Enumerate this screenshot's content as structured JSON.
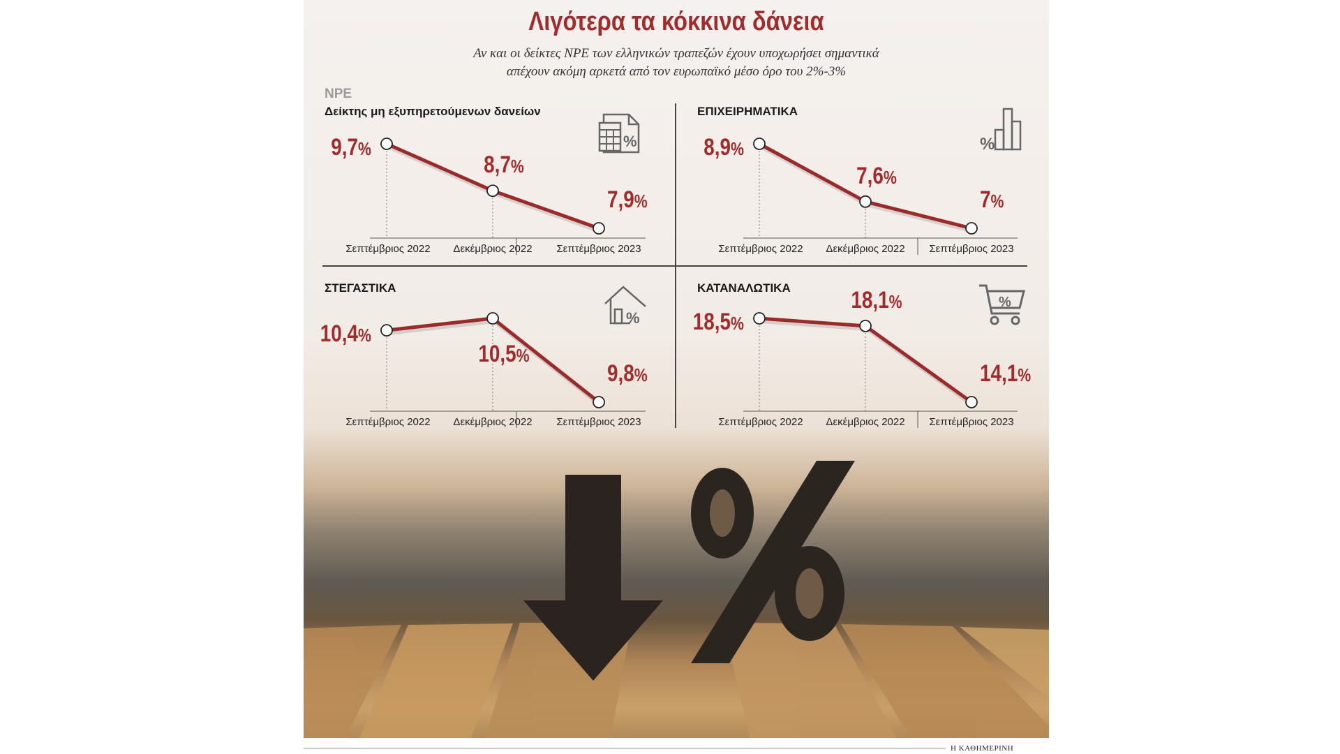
{
  "title": "Λιγότερα τα κόκκινα δάνεια",
  "subtitle": {
    "line1": "Αν και οι δείκτες NPE των ελληνικών τραπεζών έχουν υποχωρήσει σημαντικά",
    "line2": "απέχουν ακόμη αρκετά από τον ευρωπαϊκό μέσο όρο του 2%-3%"
  },
  "npe_label": "NPE",
  "footer": "Η ΚΑΘΗΜΕΡΙΝΗ",
  "colors": {
    "accent": "#a02c2c",
    "line": "#9b2a2a"
  },
  "chart_data": [
    {
      "type": "line",
      "title": "Δείκτης μη εξυπηρετούμενων δανείων",
      "icon": "calculator-percent-icon",
      "categories": [
        "Σεπτέμβριος 2022",
        "Δεκέμβριος 2022",
        "Σεπτέμβριος 2023"
      ],
      "values": [
        9.7,
        8.7,
        7.9
      ],
      "labels": [
        "9,7",
        "8,7",
        "7,9"
      ],
      "unit": "%"
    },
    {
      "type": "line",
      "title": "ΕΠΙΧΕΙΡΗΜΑΤΙΚΑ",
      "icon": "bar-chart-percent-icon",
      "categories": [
        "Σεπτέμβριος 2022",
        "Δεκέμβριος 2022",
        "Σεπτέμβριος 2023"
      ],
      "values": [
        8.9,
        7.6,
        7.0
      ],
      "labels": [
        "8,9",
        "7,6",
        "7"
      ],
      "unit": "%"
    },
    {
      "type": "line",
      "title": "ΣΤΕΓΑΣΤΙΚΑ",
      "icon": "house-percent-icon",
      "categories": [
        "Σεπτέμβριος 2022",
        "Δεκέμβριος 2022",
        "Σεπτέμβριος 2023"
      ],
      "values": [
        10.4,
        10.5,
        9.8
      ],
      "labels": [
        "10,4",
        "10,5",
        "9,8"
      ],
      "unit": "%"
    },
    {
      "type": "line",
      "title": "ΚΑΤΑΝΑΛΩΤΙΚΑ",
      "icon": "shopping-cart-percent-icon",
      "categories": [
        "Σεπτέμβριος 2022",
        "Δεκέμβριος 2022",
        "Σεπτέμβριος 2023"
      ],
      "values": [
        18.5,
        18.1,
        14.1
      ],
      "labels": [
        "18,5",
        "18,1",
        "14,1"
      ],
      "unit": "%"
    }
  ]
}
